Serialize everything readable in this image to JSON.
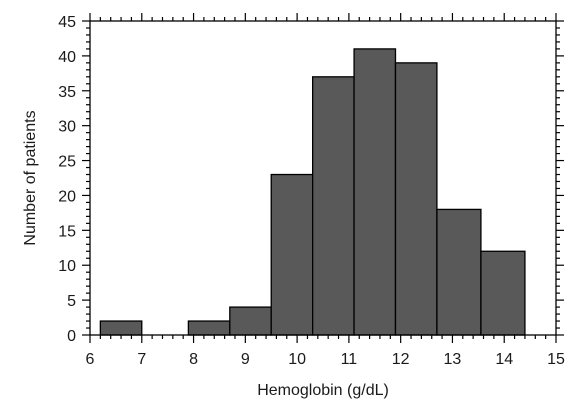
{
  "chart_data": {
    "type": "bar",
    "title": "",
    "xlabel": "Hemoglobin (g/dL)",
    "ylabel": "Number of patients",
    "xlim": [
      6,
      15
    ],
    "ylim": [
      0,
      45
    ],
    "x_ticks": [
      "6",
      "7",
      "8",
      "9",
      "10",
      "11",
      "12",
      "13",
      "14",
      "15"
    ],
    "y_ticks": [
      "0",
      "5",
      "10",
      "15",
      "20",
      "25",
      "30",
      "35",
      "40",
      "45"
    ],
    "bins": [
      {
        "x0": 6.2,
        "x1": 7.0,
        "value": 2
      },
      {
        "x0": 7.9,
        "x1": 8.7,
        "value": 2
      },
      {
        "x0": 8.7,
        "x1": 9.5,
        "value": 4
      },
      {
        "x0": 9.5,
        "x1": 10.3,
        "value": 23
      },
      {
        "x0": 10.3,
        "x1": 11.1,
        "value": 37
      },
      {
        "x0": 11.1,
        "x1": 11.9,
        "value": 41
      },
      {
        "x0": 11.9,
        "x1": 12.7,
        "value": 39
      },
      {
        "x0": 12.7,
        "x1": 13.55,
        "value": 18
      },
      {
        "x0": 13.55,
        "x1": 14.4,
        "value": 12
      }
    ],
    "bar_color": "#595959",
    "grid": false,
    "legend": "none"
  }
}
